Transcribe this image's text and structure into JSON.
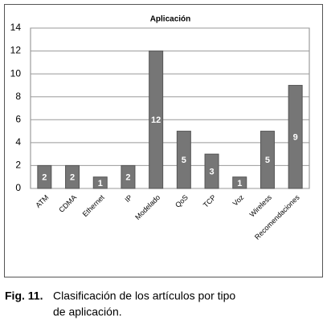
{
  "chart_data": {
    "type": "bar",
    "title": "Aplicación",
    "categories": [
      "ATM",
      "CDMA",
      "Ethernet",
      "IP",
      "Modelado",
      "QoS",
      "TCP",
      "Voz",
      "Wireless",
      "Recomendaciones"
    ],
    "values": [
      2,
      2,
      1,
      2,
      12,
      5,
      3,
      1,
      5,
      9
    ],
    "color": "#767676",
    "ylim": [
      0,
      14
    ],
    "yticks": [
      0,
      2,
      4,
      6,
      8,
      10,
      12,
      14
    ],
    "grid": true
  },
  "caption": {
    "label": "Fig. 11.",
    "lines": [
      "Clasificación de los artículos por tipo",
      "de aplicación."
    ]
  }
}
